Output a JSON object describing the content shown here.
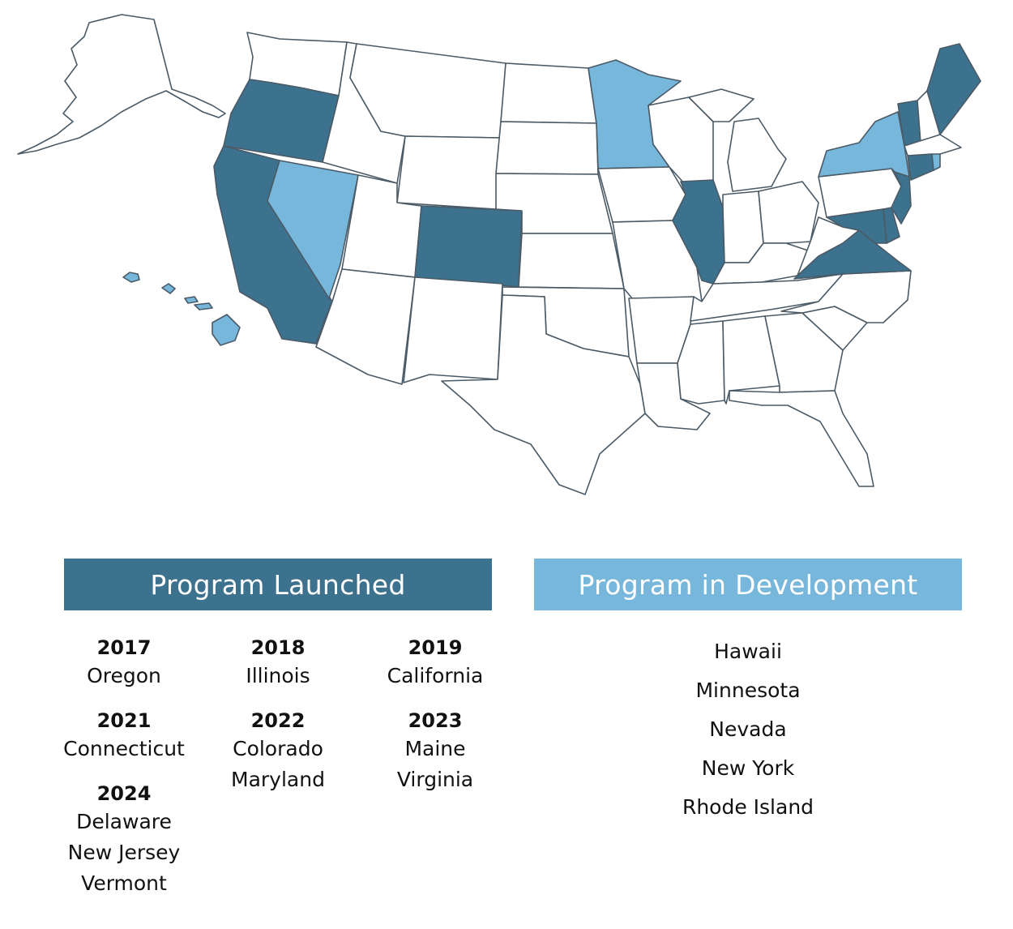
{
  "colors": {
    "launched": "#3d728e",
    "in_development": "#78b7dc",
    "not_participating": "#ffffff",
    "border": "#4a5a66"
  },
  "map": {
    "states_launched": [
      "Oregon",
      "California",
      "Illinois",
      "Colorado",
      "Connecticut",
      "Maryland",
      "Maine",
      "Virginia",
      "Delaware",
      "New Jersey",
      "Vermont"
    ],
    "states_in_development": [
      "Hawaii",
      "Minnesota",
      "Nevada",
      "New York",
      "Rhode Island"
    ]
  },
  "legend": {
    "launched": {
      "title": "Program Launched",
      "groups": [
        {
          "year": "2017",
          "states": [
            "Oregon"
          ]
        },
        {
          "year": "2018",
          "states": [
            "Illinois"
          ]
        },
        {
          "year": "2019",
          "states": [
            "California"
          ]
        },
        {
          "year": "2021",
          "states": [
            "Connecticut"
          ]
        },
        {
          "year": "2022",
          "states": [
            "Colorado",
            "Maryland"
          ]
        },
        {
          "year": "2023",
          "states": [
            "Maine",
            "Virginia"
          ]
        },
        {
          "year": "2024",
          "states": [
            "Delaware",
            "New Jersey",
            "Vermont"
          ]
        }
      ]
    },
    "development": {
      "title": "Program in Development",
      "states": [
        "Hawaii",
        "Minnesota",
        "Nevada",
        "New York",
        "Rhode Island"
      ]
    }
  }
}
